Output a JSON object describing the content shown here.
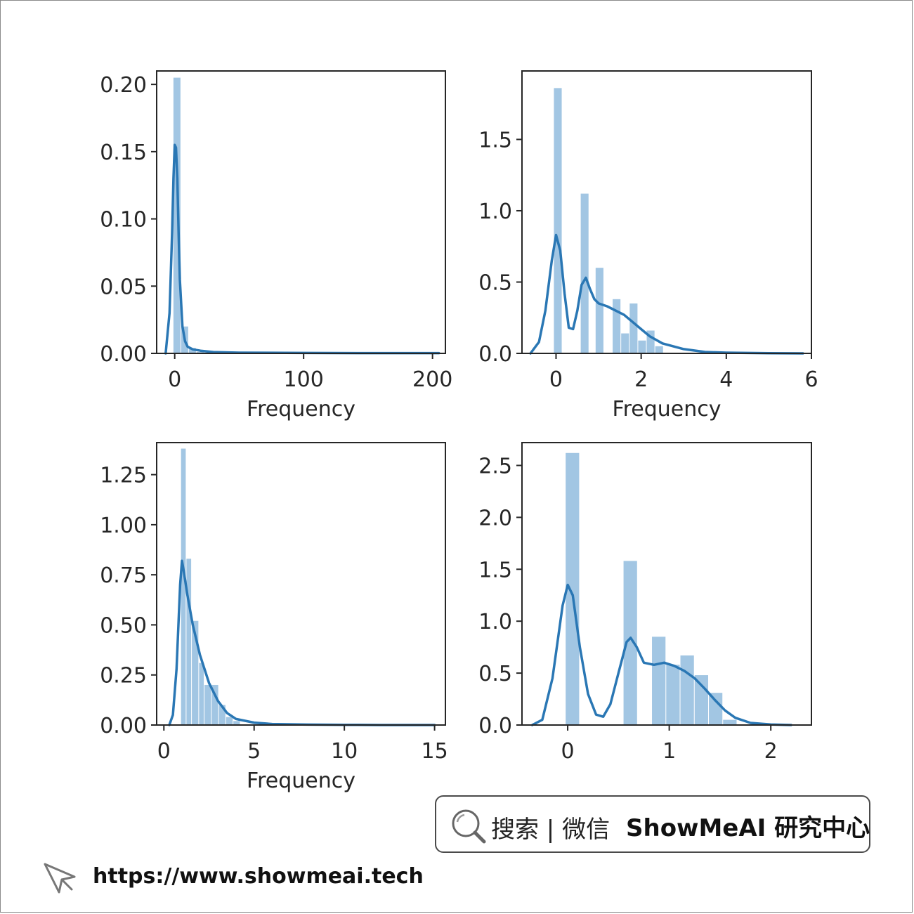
{
  "colors": {
    "bar": "#9dc3e1",
    "kde": "#2a77b4",
    "axis": "#262626"
  },
  "search": {
    "text": "搜索 | 微信",
    "brand": "ShowMeAI 研究中心"
  },
  "footer": {
    "url": "https://www.showmeai.tech"
  },
  "chart_data": [
    {
      "type": "bar",
      "title": "",
      "xlabel": "Frequency",
      "ylabel": "",
      "xlim": [
        -14,
        210
      ],
      "ylim": [
        0,
        0.21
      ],
      "xticks": [
        0,
        100,
        200
      ],
      "xtick_labels": [
        "0",
        "100",
        "200"
      ],
      "yticks": [
        0,
        0.05,
        0.1,
        0.15,
        0.2
      ],
      "ytick_labels": [
        "0.00",
        "0.05",
        "0.10",
        "0.15",
        "0.20"
      ],
      "bars": [
        {
          "x0": -1,
          "x1": 5,
          "value": 0.205
        },
        {
          "x0": 5,
          "x1": 11,
          "value": 0.02
        },
        {
          "x0": 11,
          "x1": 17,
          "value": 0.004
        },
        {
          "x0": 17,
          "x1": 23,
          "value": 0.001
        }
      ],
      "kde": {
        "x": [
          -7,
          -4,
          -2,
          -1,
          0,
          1,
          2,
          3,
          4,
          6,
          8,
          10,
          14,
          20,
          30,
          50,
          100,
          150,
          200,
          205
        ],
        "y": [
          0,
          0.03,
          0.09,
          0.13,
          0.155,
          0.153,
          0.13,
          0.09,
          0.055,
          0.02,
          0.009,
          0.005,
          0.003,
          0.002,
          0.001,
          0.0005,
          0.0003,
          0.0002,
          0.0002,
          0.0002
        ]
      }
    },
    {
      "type": "bar",
      "title": "",
      "xlabel": "Frequency",
      "ylabel": "",
      "xlim": [
        -0.8,
        6
      ],
      "ylim": [
        0,
        1.98
      ],
      "xticks": [
        0,
        2,
        4,
        6
      ],
      "xtick_labels": [
        "0",
        "2",
        "4",
        "6"
      ],
      "yticks": [
        0,
        0.5,
        1.0,
        1.5
      ],
      "ytick_labels": [
        "0.0",
        "0.5",
        "1.0",
        "1.5"
      ],
      "bars": [
        {
          "x0": -0.05,
          "x1": 0.15,
          "value": 1.86
        },
        {
          "x0": 0.58,
          "x1": 0.78,
          "value": 1.12
        },
        {
          "x0": 0.93,
          "x1": 1.13,
          "value": 0.6
        },
        {
          "x0": 1.33,
          "x1": 1.53,
          "value": 0.38
        },
        {
          "x0": 1.53,
          "x1": 1.73,
          "value": 0.14
        },
        {
          "x0": 1.73,
          "x1": 1.93,
          "value": 0.35
        },
        {
          "x0": 1.93,
          "x1": 2.13,
          "value": 0.09
        },
        {
          "x0": 2.13,
          "x1": 2.33,
          "value": 0.16
        },
        {
          "x0": 2.33,
          "x1": 2.53,
          "value": 0.05
        }
      ],
      "kde": {
        "x": [
          -0.6,
          -0.4,
          -0.25,
          -0.1,
          0.0,
          0.1,
          0.2,
          0.3,
          0.4,
          0.5,
          0.6,
          0.7,
          0.8,
          0.9,
          1.0,
          1.2,
          1.4,
          1.6,
          1.8,
          2.0,
          2.2,
          2.5,
          3.0,
          3.5,
          4.0,
          5.0,
          5.8
        ],
        "y": [
          0.0,
          0.08,
          0.3,
          0.65,
          0.83,
          0.72,
          0.42,
          0.18,
          0.17,
          0.3,
          0.48,
          0.53,
          0.45,
          0.38,
          0.35,
          0.33,
          0.3,
          0.27,
          0.22,
          0.17,
          0.12,
          0.07,
          0.03,
          0.01,
          0.005,
          0.001,
          0.0
        ]
      }
    },
    {
      "type": "bar",
      "title": "",
      "xlabel": "Frequency",
      "ylabel": "",
      "xlim": [
        -0.4,
        15.6
      ],
      "ylim": [
        0,
        1.41
      ],
      "xticks": [
        0,
        5,
        10,
        15
      ],
      "xtick_labels": [
        "0",
        "5",
        "10",
        "15"
      ],
      "yticks": [
        0,
        0.25,
        0.5,
        0.75,
        1.0,
        1.25
      ],
      "ytick_labels": [
        "0.00",
        "0.25",
        "0.50",
        "0.75",
        "1.00",
        "1.25"
      ],
      "bars": [
        {
          "x0": 0.95,
          "x1": 1.25,
          "value": 1.38
        },
        {
          "x0": 1.25,
          "x1": 1.55,
          "value": 0.83
        },
        {
          "x0": 1.55,
          "x1": 1.95,
          "value": 0.52
        },
        {
          "x0": 1.95,
          "x1": 2.25,
          "value": 0.31
        },
        {
          "x0": 2.25,
          "x1": 2.65,
          "value": 0.2
        },
        {
          "x0": 2.65,
          "x1": 3.05,
          "value": 0.2
        },
        {
          "x0": 3.05,
          "x1": 3.45,
          "value": 0.1
        },
        {
          "x0": 3.45,
          "x1": 3.85,
          "value": 0.04
        },
        {
          "x0": 3.85,
          "x1": 4.25,
          "value": 0.02
        }
      ],
      "kde": {
        "x": [
          0.3,
          0.5,
          0.7,
          0.9,
          1.0,
          1.1,
          1.3,
          1.6,
          2.0,
          2.5,
          3.0,
          3.5,
          4.0,
          5.0,
          6.0,
          8.0,
          10.0,
          12.0,
          15.0
        ],
        "y": [
          0.0,
          0.05,
          0.28,
          0.7,
          0.82,
          0.77,
          0.65,
          0.5,
          0.35,
          0.21,
          0.12,
          0.06,
          0.03,
          0.012,
          0.005,
          0.002,
          0.001,
          0.0,
          0.0
        ]
      }
    },
    {
      "type": "bar",
      "title": "",
      "xlabel": "",
      "ylabel": "",
      "xlim": [
        -0.45,
        2.4
      ],
      "ylim": [
        0,
        2.72
      ],
      "xticks": [
        0,
        1,
        2
      ],
      "xtick_labels": [
        "0",
        "1",
        "2"
      ],
      "yticks": [
        0,
        0.5,
        1.0,
        1.5,
        2.0,
        2.5
      ],
      "ytick_labels": [
        "0.0",
        "0.5",
        "1.0",
        "1.5",
        "2.0",
        "2.5"
      ],
      "bars": [
        {
          "x0": -0.02,
          "x1": 0.12,
          "value": 2.62
        },
        {
          "x0": 0.55,
          "x1": 0.69,
          "value": 1.58
        },
        {
          "x0": 0.83,
          "x1": 0.97,
          "value": 0.85
        },
        {
          "x0": 0.97,
          "x1": 1.11,
          "value": 0.58
        },
        {
          "x0": 1.11,
          "x1": 1.25,
          "value": 0.67
        },
        {
          "x0": 1.25,
          "x1": 1.39,
          "value": 0.48
        },
        {
          "x0": 1.39,
          "x1": 1.53,
          "value": 0.31
        },
        {
          "x0": 1.53,
          "x1": 1.67,
          "value": 0.05
        }
      ],
      "kde": {
        "x": [
          -0.35,
          -0.25,
          -0.15,
          -0.05,
          0.0,
          0.05,
          0.12,
          0.2,
          0.28,
          0.35,
          0.42,
          0.5,
          0.58,
          0.62,
          0.68,
          0.75,
          0.85,
          0.95,
          1.05,
          1.15,
          1.25,
          1.35,
          1.45,
          1.55,
          1.65,
          1.8,
          2.0,
          2.2
        ],
        "y": [
          0.0,
          0.05,
          0.45,
          1.15,
          1.35,
          1.25,
          0.75,
          0.3,
          0.1,
          0.08,
          0.2,
          0.5,
          0.8,
          0.84,
          0.75,
          0.6,
          0.58,
          0.6,
          0.57,
          0.52,
          0.45,
          0.35,
          0.24,
          0.14,
          0.07,
          0.02,
          0.005,
          0.0
        ]
      }
    }
  ]
}
